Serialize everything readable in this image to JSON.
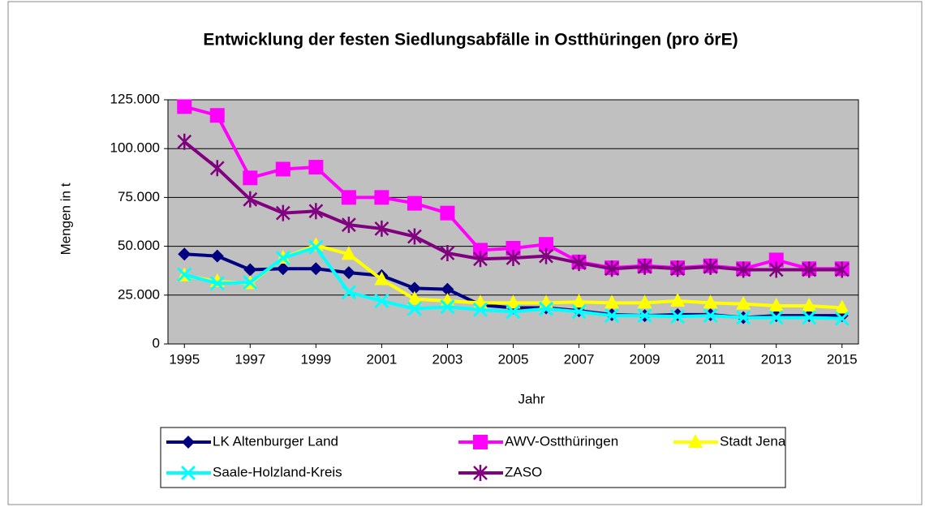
{
  "chart_data": {
    "type": "line",
    "title": "Entwicklung der festen Siedlungsabfälle in Ostthüringen (pro örE)",
    "xlabel": "Jahr",
    "ylabel": "Mengen in t",
    "x": [
      1995,
      1996,
      1997,
      1998,
      1999,
      2000,
      2001,
      2002,
      2003,
      2004,
      2005,
      2006,
      2007,
      2008,
      2009,
      2010,
      2011,
      2012,
      2013,
      2014,
      2015
    ],
    "xlim": [
      1994.5,
      2015.5
    ],
    "xticks": [
      1995,
      1997,
      1999,
      2001,
      2003,
      2005,
      2007,
      2009,
      2011,
      2013,
      2015
    ],
    "ylim": [
      0,
      125000
    ],
    "yticks": [
      0,
      {
        "value": 25000,
        "label": "25.000"
      },
      {
        "value": 50000,
        "label": "50.000"
      },
      {
        "value": 75000,
        "label": "75.000"
      },
      {
        "value": 100000,
        "label": "100.000"
      },
      {
        "value": 125000,
        "label": "125.000"
      }
    ],
    "grid": true,
    "plot_background": "#c0c0c0",
    "legend": "bottom",
    "series": [
      {
        "name": "LK Altenburger Land",
        "color": "#000080",
        "marker": "diamond",
        "values": [
          46000,
          45000,
          38000,
          38500,
          38500,
          36500,
          35000,
          28500,
          28000,
          20000,
          18500,
          18500,
          17000,
          15000,
          14500,
          15000,
          15000,
          13500,
          14500,
          14500,
          14500
        ]
      },
      {
        "name": "AWV-Ostthüringen",
        "color": "#ff00ff",
        "marker": "square",
        "values": [
          121500,
          117000,
          85000,
          89500,
          90500,
          75000,
          75000,
          72000,
          67000,
          48000,
          49000,
          51000,
          42000,
          39000,
          40000,
          39000,
          40000,
          38500,
          43000,
          38500,
          38500
        ]
      },
      {
        "name": "Stadt Jena",
        "color": "#ffff00",
        "marker": "triangle",
        "values": [
          35000,
          32000,
          31000,
          44000,
          50500,
          46000,
          33000,
          23000,
          22000,
          21000,
          21000,
          21000,
          21500,
          21000,
          21000,
          22000,
          21000,
          20500,
          19500,
          19500,
          18500
        ]
      },
      {
        "name": "Saale-Holzland-Kreis",
        "color": "#00ffff",
        "marker": "x",
        "values": [
          35500,
          31000,
          31500,
          44000,
          49500,
          26500,
          22000,
          18000,
          19000,
          17500,
          16500,
          18000,
          16500,
          14500,
          14500,
          14000,
          14500,
          13500,
          13500,
          13500,
          13000
        ]
      },
      {
        "name": "ZASO",
        "color": "#800080",
        "marker": "star",
        "values": [
          103500,
          90000,
          74000,
          67000,
          68000,
          61000,
          59000,
          55000,
          46500,
          43500,
          44000,
          45000,
          41500,
          38500,
          39500,
          38500,
          39500,
          38000,
          38000,
          38000,
          38000
        ]
      }
    ]
  }
}
